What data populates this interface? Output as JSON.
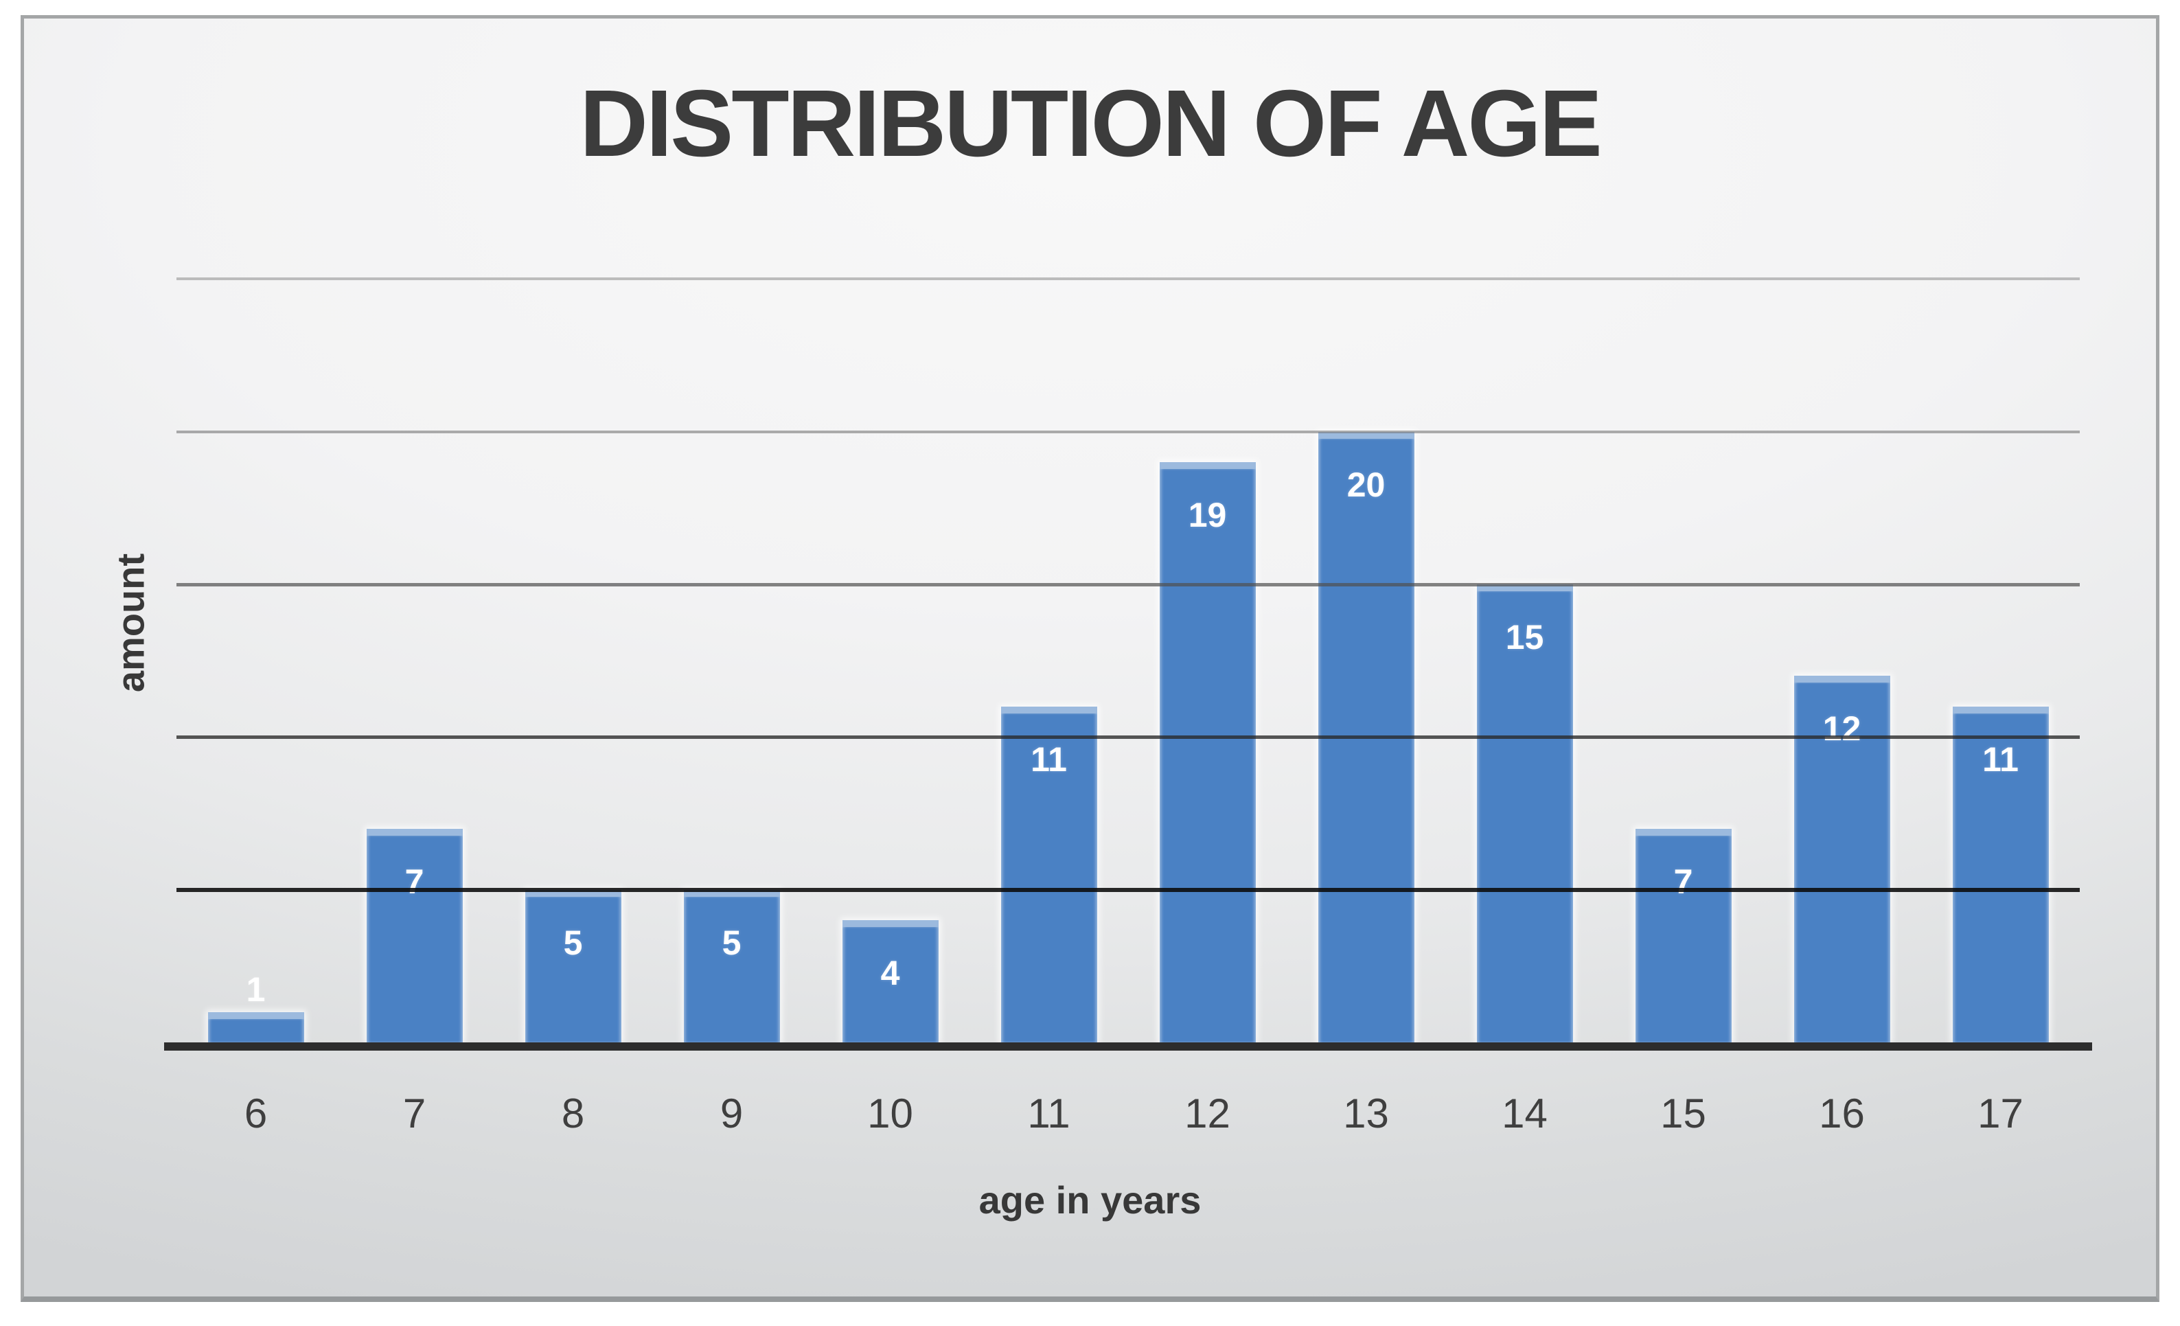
{
  "chart_data": {
    "type": "bar",
    "title": "DISTRIBUTION OF AGE",
    "xlabel": "age in years",
    "ylabel": "amount",
    "categories": [
      "6",
      "7",
      "8",
      "9",
      "10",
      "11",
      "12",
      "13",
      "14",
      "15",
      "16",
      "17"
    ],
    "values": [
      1,
      7,
      5,
      5,
      4,
      11,
      19,
      20,
      15,
      7,
      12,
      11
    ],
    "ylim": [
      0,
      26
    ],
    "grid": true,
    "legend_position": "none",
    "data_labels": "inside-end-white, outside-end-when-bar-too-short",
    "gridlines": [
      {
        "value": 5,
        "color": "rgba(10,10,10,0.88)",
        "thickness": 6
      },
      {
        "value": 10,
        "color": "rgba(40,40,40,0.78)",
        "thickness": 5
      },
      {
        "value": 15,
        "color": "rgba(80,80,80,0.70)",
        "thickness": 5
      },
      {
        "value": 20,
        "color": "rgba(120,120,120,0.60)",
        "thickness": 4
      },
      {
        "value": 25,
        "color": "rgba(140,140,140,0.55)",
        "thickness": 4
      }
    ],
    "colors": {
      "bar_fill": "#4a81c4",
      "bar_top_cap": "#9cbade",
      "bar_edge_glow": "#ffffff",
      "value_label": "#ffffff",
      "axis_line": "#2d2d2d",
      "title_text": "#3c3c3c",
      "tick_text": "#3f3f3f",
      "frame_border": "#a4a6a7"
    }
  }
}
